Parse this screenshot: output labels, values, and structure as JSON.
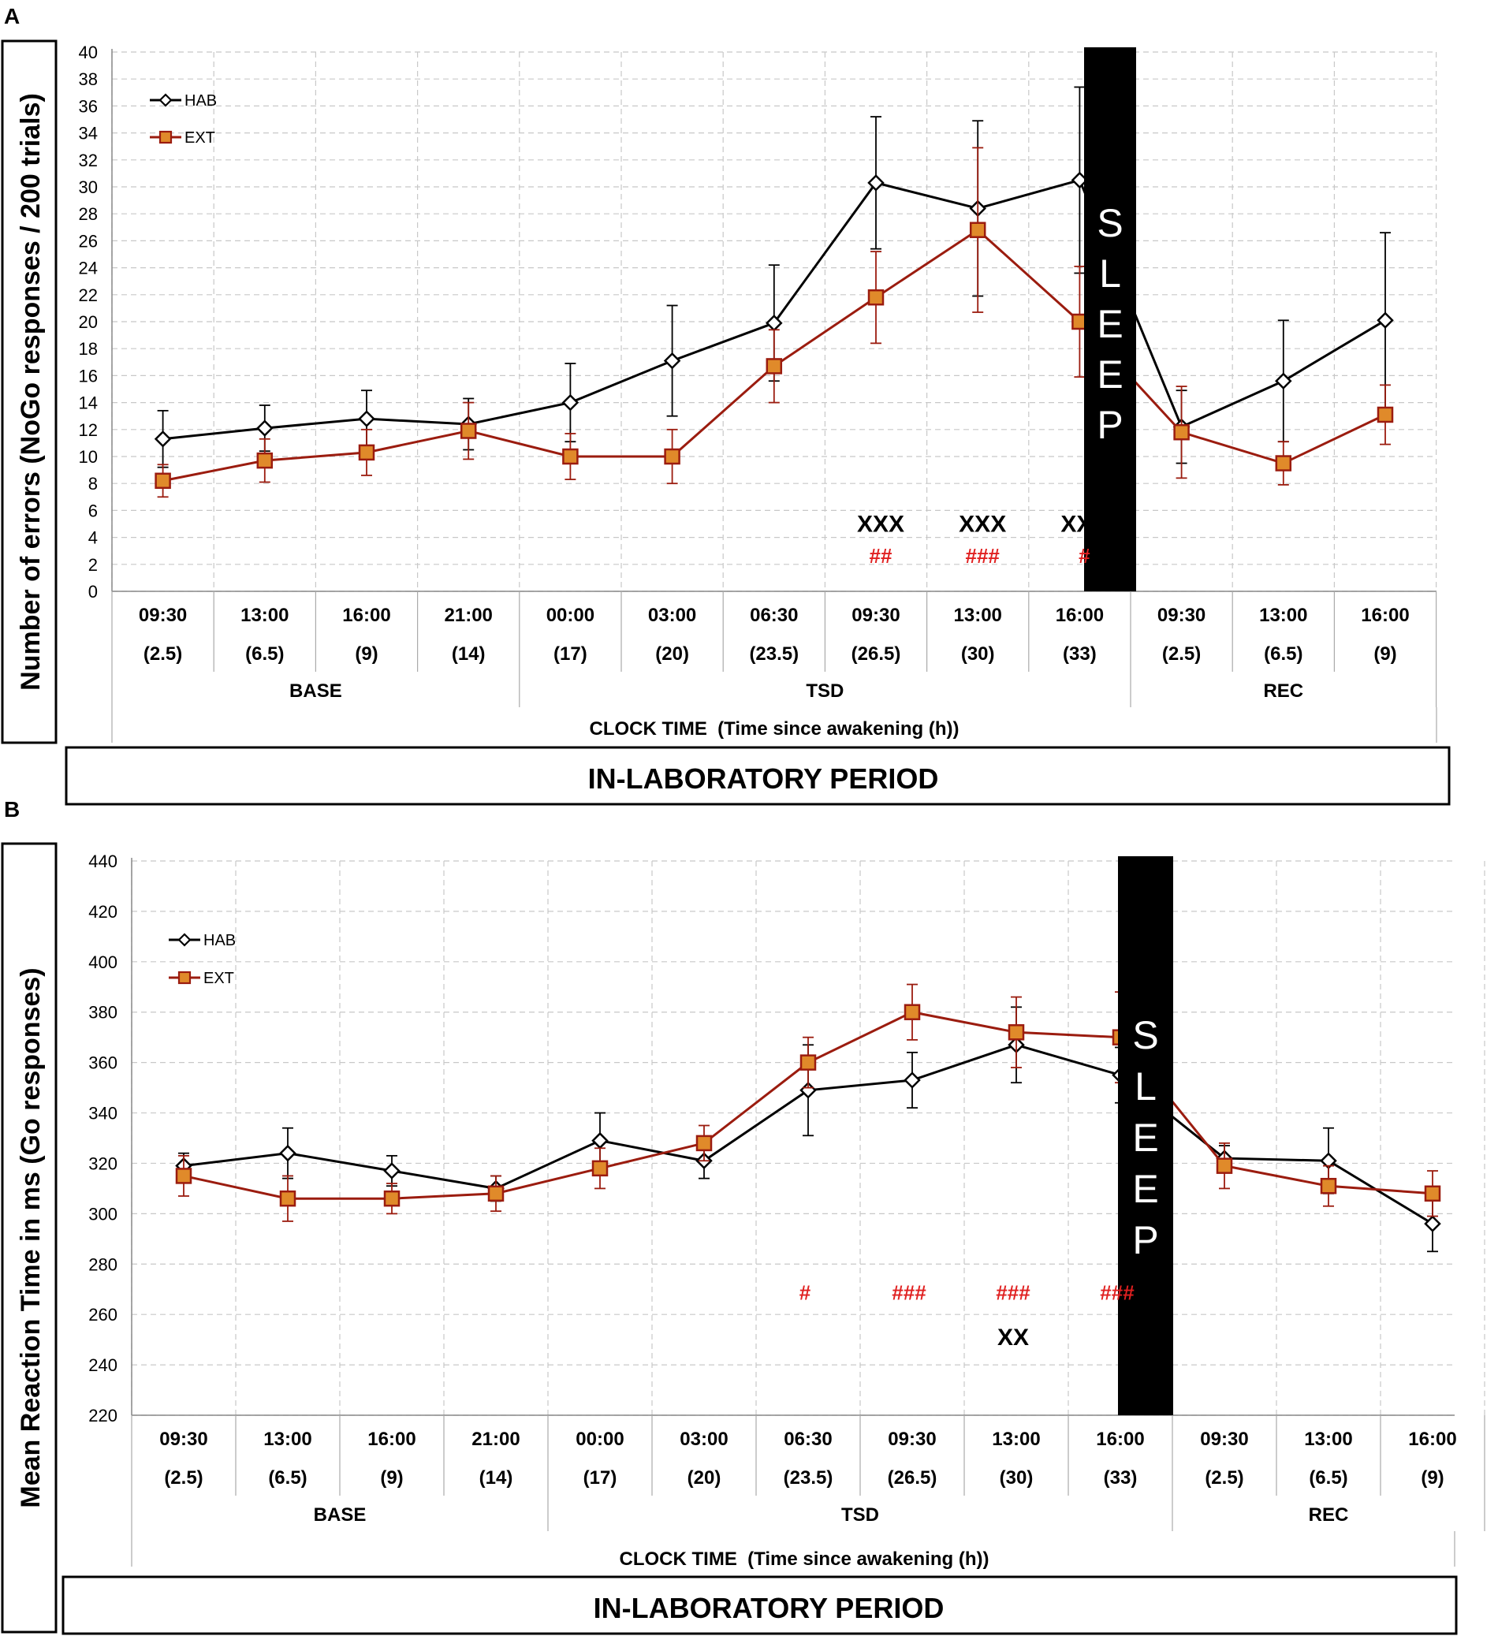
{
  "colors": {
    "hab": "#000000",
    "ext": "#9b1c0f",
    "ext_fill": "#e08a2a",
    "sig_red": "#e02020",
    "grid": "#c8c8c8"
  },
  "chart_data": [
    {
      "type": "line",
      "panel_label": "A",
      "ylabel": "Number of errors (NoGo responses / 200 trials)",
      "xlabel": "CLOCK TIME  (Time since awakening (h))",
      "period_label": "IN-LABORATORY PERIOD",
      "ylim": [
        0,
        40
      ],
      "yticks": [
        0,
        2,
        4,
        6,
        8,
        10,
        12,
        14,
        16,
        18,
        20,
        22,
        24,
        26,
        28,
        30,
        32,
        34,
        36,
        38,
        40
      ],
      "categories": [
        "09:30",
        "13:00",
        "16:00",
        "21:00",
        "00:00",
        "03:00",
        "06:30",
        "09:30",
        "13:00",
        "16:00",
        "09:30",
        "13:00",
        "16:00"
      ],
      "hours": [
        "(2.5)",
        "(6.5)",
        "(9)",
        "(14)",
        "(17)",
        "(20)",
        "(23.5)",
        "(26.5)",
        "(30)",
        "(33)",
        "(2.5)",
        "(6.5)",
        "(9)"
      ],
      "phases": [
        {
          "label": "BASE",
          "start": 0,
          "end": 3
        },
        {
          "label": "TSD",
          "start": 4,
          "end": 9
        },
        {
          "label": "REC",
          "start": 10,
          "end": 12
        }
      ],
      "sleep_label": "SLEEP",
      "sleep_after_index": 9,
      "legend": [
        {
          "name": "HAB"
        },
        {
          "name": "EXT"
        }
      ],
      "series": [
        {
          "name": "HAB",
          "values": [
            11.3,
            12.1,
            12.8,
            12.4,
            14.0,
            17.1,
            19.9,
            30.3,
            28.4,
            30.5,
            12.2,
            15.6,
            20.1
          ],
          "errors": [
            2.1,
            1.7,
            2.1,
            1.9,
            2.9,
            4.1,
            4.3,
            4.9,
            6.5,
            6.9,
            2.7,
            4.5,
            6.5
          ]
        },
        {
          "name": "EXT",
          "values": [
            8.2,
            9.7,
            10.3,
            11.9,
            10.0,
            10.0,
            16.7,
            21.8,
            26.8,
            20.0,
            11.8,
            9.5,
            13.1
          ],
          "errors": [
            1.2,
            1.6,
            1.7,
            2.1,
            1.7,
            2.0,
            2.7,
            3.4,
            6.1,
            4.1,
            3.4,
            1.6,
            2.2
          ]
        }
      ],
      "annotations": [
        {
          "text": "XXX",
          "index": 7,
          "y": 5,
          "color": "black"
        },
        {
          "text": "XXX",
          "index": 8,
          "y": 5,
          "color": "black"
        },
        {
          "text": "XXX",
          "index": 9,
          "y": 5,
          "color": "black"
        },
        {
          "text": "##",
          "index": 7,
          "y": 2.7,
          "color": "red"
        },
        {
          "text": "###",
          "index": 8,
          "y": 2.7,
          "color": "red"
        },
        {
          "text": "#",
          "index": 9,
          "y": 2.7,
          "color": "red"
        }
      ]
    },
    {
      "type": "line",
      "panel_label": "B",
      "ylabel": "Mean Reaction Time in ms (Go responses)",
      "xlabel": "CLOCK TIME  (Time since awakening (h))",
      "period_label": "IN-LABORATORY PERIOD",
      "ylim": [
        220,
        440
      ],
      "yticks": [
        220,
        240,
        260,
        280,
        300,
        320,
        340,
        360,
        380,
        400,
        420,
        440
      ],
      "categories": [
        "09:30",
        "13:00",
        "16:00",
        "21:00",
        "00:00",
        "03:00",
        "06:30",
        "09:30",
        "13:00",
        "16:00",
        "09:30",
        "13:00",
        "16:00"
      ],
      "hours": [
        "(2.5)",
        "(6.5)",
        "(9)",
        "(14)",
        "(17)",
        "(20)",
        "(23.5)",
        "(26.5)",
        "(30)",
        "(33)",
        "(2.5)",
        "(6.5)",
        "(9)"
      ],
      "phases": [
        {
          "label": "BASE",
          "start": 0,
          "end": 3
        },
        {
          "label": "TSD",
          "start": 4,
          "end": 9
        },
        {
          "label": "REC",
          "start": 10,
          "end": 12
        }
      ],
      "sleep_label": "SLEEP",
      "sleep_after_index": 9,
      "legend": [
        {
          "name": "HAB"
        },
        {
          "name": "EXT"
        }
      ],
      "series": [
        {
          "name": "HAB",
          "values": [
            319,
            324,
            317,
            310,
            329,
            321,
            349,
            353,
            367,
            355,
            322,
            321,
            296
          ],
          "errors": [
            5,
            10,
            6,
            5,
            11,
            7,
            18,
            11,
            15,
            11,
            5,
            13,
            11
          ]
        },
        {
          "name": "EXT",
          "values": [
            315,
            306,
            306,
            308,
            318,
            328,
            360,
            380,
            372,
            370,
            319,
            311,
            308
          ],
          "errors": [
            8,
            9,
            6,
            7,
            8,
            7,
            10,
            11,
            14,
            18,
            9,
            8,
            9
          ]
        }
      ],
      "annotations": [
        {
          "text": "#",
          "index": 6,
          "y": 269,
          "color": "red"
        },
        {
          "text": "###",
          "index": 7,
          "y": 269,
          "color": "red"
        },
        {
          "text": "###",
          "index": 8,
          "y": 269,
          "color": "red"
        },
        {
          "text": "###",
          "index": 9,
          "y": 269,
          "color": "red"
        },
        {
          "text": "XX",
          "index": 8,
          "y": 251,
          "color": "black"
        }
      ]
    }
  ]
}
